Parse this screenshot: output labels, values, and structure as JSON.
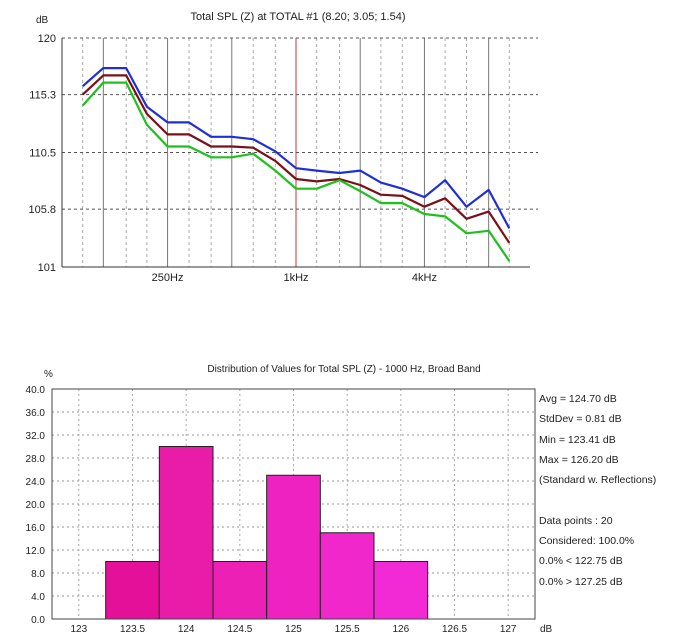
{
  "colors": {
    "series_top": "#1f2fd8",
    "series_mid": "#7a1018",
    "series_bottom": "#1ec01e",
    "marker_line": "#cc3333",
    "bars": [
      "#e4109a",
      "#e81ca8",
      "#ec20b4",
      "#ee22c0",
      "#f028cc",
      "#f22ad6"
    ]
  },
  "chart_data": [
    {
      "type": "line",
      "title": "Total SPL (Z) at TOTAL #1  (8.20; 3.05; 1.54)",
      "ylabel": "dB",
      "ylim": [
        101,
        120
      ],
      "yticks": [
        "120",
        "115.3",
        "110.5",
        "105.8",
        "101"
      ],
      "xscale": "log",
      "xlim": [
        80,
        12500
      ],
      "xtick_labels": [
        {
          "label": "250Hz",
          "x": 250
        },
        {
          "label": "1kHz",
          "x": 1000
        },
        {
          "label": "4kHz",
          "x": 4000
        }
      ],
      "highlight_x": 1000,
      "grid": true,
      "x": [
        100,
        125,
        160,
        200,
        250,
        315,
        400,
        500,
        630,
        800,
        1000,
        1250,
        1600,
        2000,
        2500,
        3150,
        4000,
        5000,
        6300,
        8000,
        10000
      ],
      "series": [
        {
          "values": [
            116.0,
            117.5,
            117.5,
            114.3,
            113.0,
            113.0,
            111.8,
            111.8,
            111.6,
            110.6,
            109.2,
            109.0,
            108.8,
            109.0,
            108.0,
            107.5,
            106.8,
            108.2,
            106.0,
            107.4,
            104.2
          ]
        },
        {
          "values": [
            115.3,
            116.9,
            116.9,
            113.7,
            112.0,
            112.0,
            111.0,
            111.0,
            110.9,
            109.8,
            108.3,
            108.1,
            108.3,
            107.8,
            107.0,
            106.9,
            106.0,
            106.7,
            105.0,
            105.6,
            103.0
          ]
        },
        {
          "values": [
            114.4,
            116.3,
            116.3,
            112.8,
            111.0,
            111.0,
            110.1,
            110.1,
            110.4,
            109.0,
            107.5,
            107.5,
            108.2,
            107.3,
            106.3,
            106.3,
            105.4,
            105.2,
            103.8,
            104.0,
            101.5
          ]
        }
      ]
    },
    {
      "type": "bar",
      "title": "Distribution of Values for Total SPL (Z) - 1000 Hz, Broad Band",
      "ylabel": "%",
      "xlabel": "dB",
      "ylim": [
        0,
        40
      ],
      "yticks": [
        "40.0",
        "36.0",
        "32.0",
        "28.0",
        "24.0",
        "20.0",
        "16.0",
        "12.0",
        "8.0",
        "4.0",
        "0.0"
      ],
      "xlim": [
        122.75,
        127.25
      ],
      "xticks": [
        "123",
        "123.5",
        "124",
        "124.5",
        "125",
        "125.5",
        "126",
        "126.5",
        "127"
      ],
      "bins": [
        {
          "from": 123.25,
          "to": 123.75,
          "value": 10
        },
        {
          "from": 123.75,
          "to": 124.25,
          "value": 30
        },
        {
          "from": 124.25,
          "to": 124.75,
          "value": 10
        },
        {
          "from": 124.75,
          "to": 125.25,
          "value": 25
        },
        {
          "from": 125.25,
          "to": 125.75,
          "value": 15
        },
        {
          "from": 125.75,
          "to": 126.25,
          "value": 10
        }
      ],
      "grid": true,
      "stats": [
        "Avg = 124.70 dB",
        "StdDev = 0.81 dB",
        "Min = 123.41 dB",
        "Max = 126.20 dB",
        "(Standard w. Reflections)",
        "",
        "Data points : 20",
        "Considered: 100.0%",
        "0.0% < 122.75 dB",
        "0.0% > 127.25 dB"
      ]
    }
  ]
}
